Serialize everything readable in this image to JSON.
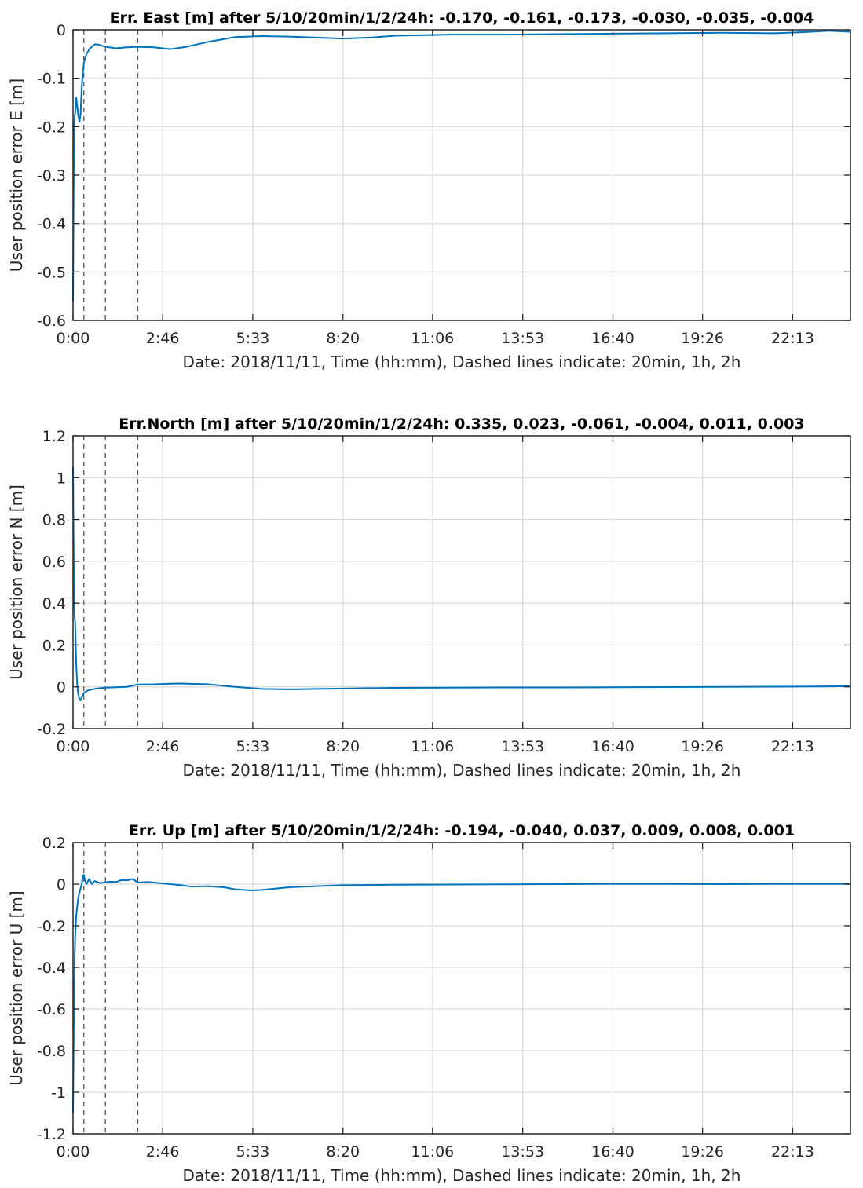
{
  "chart_data": [
    {
      "type": "line",
      "title": "Err. East [m] after 5/10/20min/1/2/24h: -0.170, -0.161, -0.173, -0.030, -0.035, -0.004",
      "xlabel": "Date: 2018/11/11, Time (hh:mm), Dashed lines indicate: 20min, 1h, 2h",
      "ylabel": "User position error E [m]",
      "xlim": [
        0,
        1440
      ],
      "ylim": [
        -0.6,
        0
      ],
      "x_ticks": [
        0,
        166,
        333,
        500,
        666,
        833,
        1000,
        1166,
        1333
      ],
      "x_tick_labels": [
        "0:00",
        "2:46",
        "5:33",
        "8:20",
        "11:06",
        "13:53",
        "16:40",
        "19:26",
        "22:13"
      ],
      "y_ticks": [
        0,
        -0.1,
        -0.2,
        -0.3,
        -0.4,
        -0.5,
        -0.6
      ],
      "y_tick_labels": [
        "0",
        "-0.1",
        "-0.2",
        "-0.3",
        "-0.4",
        "-0.5",
        "-0.6"
      ],
      "grid": true,
      "dashed_lines_x": [
        20,
        60,
        120
      ],
      "color": "#0072bd",
      "series": [
        {
          "x": [
            0,
            1,
            2,
            3,
            4,
            5,
            6,
            8,
            10,
            12,
            14,
            16,
            18,
            20,
            22,
            25,
            30,
            40,
            45,
            60,
            80,
            100,
            120,
            150,
            180,
            210,
            250,
            300,
            350,
            400,
            450,
            500,
            550,
            600,
            700,
            800,
            900,
            1000,
            1100,
            1200,
            1300,
            1350,
            1400,
            1440
          ],
          "y": [
            -0.56,
            -0.35,
            -0.2,
            -0.18,
            -0.17,
            -0.16,
            -0.14,
            -0.16,
            -0.18,
            -0.19,
            -0.173,
            -0.12,
            -0.09,
            -0.07,
            -0.06,
            -0.05,
            -0.04,
            -0.03,
            -0.03,
            -0.035,
            -0.038,
            -0.036,
            -0.035,
            -0.036,
            -0.04,
            -0.035,
            -0.025,
            -0.015,
            -0.013,
            -0.014,
            -0.016,
            -0.018,
            -0.016,
            -0.012,
            -0.01,
            -0.01,
            -0.009,
            -0.008,
            -0.007,
            -0.006,
            -0.007,
            -0.005,
            -0.002,
            -0.004
          ]
        }
      ]
    },
    {
      "type": "line",
      "title": "Err.North [m] after 5/10/20min/1/2/24h: 0.335,  0.023, -0.061, -0.004,  0.011,  0.003",
      "xlabel": "Date: 2018/11/11, Time (hh:mm), Dashed lines indicate: 20min, 1h, 2h",
      "ylabel": "User position error N [m]",
      "xlim": [
        0,
        1440
      ],
      "ylim": [
        -0.2,
        1.2
      ],
      "x_ticks": [
        0,
        166,
        333,
        500,
        666,
        833,
        1000,
        1166,
        1333
      ],
      "x_tick_labels": [
        "0:00",
        "2:46",
        "5:33",
        "8:20",
        "11:06",
        "13:53",
        "16:40",
        "19:26",
        "22:13"
      ],
      "y_ticks": [
        1.2,
        1,
        0.8,
        0.6,
        0.4,
        0.2,
        0,
        -0.2
      ],
      "y_tick_labels": [
        "1.2",
        "1",
        "0.8",
        "0.6",
        "0.4",
        "0.2",
        "0",
        "-0.2"
      ],
      "grid": true,
      "dashed_lines_x": [
        20,
        60,
        120
      ],
      "color": "#0072bd",
      "series": [
        {
          "x": [
            0,
            1,
            2,
            3,
            4,
            5,
            6,
            8,
            10,
            12,
            14,
            16,
            18,
            20,
            25,
            30,
            40,
            50,
            60,
            80,
            100,
            120,
            150,
            180,
            200,
            250,
            300,
            350,
            400,
            450,
            500,
            600,
            700,
            800,
            900,
            1000,
            1100,
            1200,
            1300,
            1400,
            1440
          ],
          "y": [
            1.05,
            0.7,
            0.4,
            0.335,
            0.3,
            0.2,
            0.1,
            0.0,
            -0.04,
            -0.06,
            -0.065,
            -0.05,
            -0.04,
            -0.03,
            -0.02,
            -0.015,
            -0.01,
            -0.006,
            -0.004,
            -0.002,
            0.0,
            0.011,
            0.012,
            0.015,
            0.016,
            0.012,
            0.0,
            -0.01,
            -0.012,
            -0.01,
            -0.008,
            -0.005,
            -0.004,
            -0.003,
            -0.003,
            -0.002,
            -0.001,
            0.0,
            0.001,
            0.002,
            0.003
          ]
        }
      ]
    },
    {
      "type": "line",
      "title": "Err. Up [m] after 5/10/20min/1/2/24h: -0.194, -0.040,  0.037,  0.009,  0.008,  0.001",
      "xlabel": "Date: 2018/11/11, Time (hh:mm), Dashed lines indicate: 20min, 1h, 2h",
      "ylabel": "User position error U [m]",
      "xlim": [
        0,
        1440
      ],
      "ylim": [
        -1.2,
        0.2
      ],
      "x_ticks": [
        0,
        166,
        333,
        500,
        666,
        833,
        1000,
        1166,
        1333
      ],
      "x_tick_labels": [
        "0:00",
        "2:46",
        "5:33",
        "8:20",
        "11:06",
        "13:53",
        "16:40",
        "19:26",
        "22:13"
      ],
      "y_ticks": [
        0.2,
        0,
        -0.2,
        -0.4,
        -0.6,
        -0.8,
        -1,
        -1.2
      ],
      "y_tick_labels": [
        "0.2",
        "0",
        "-0.2",
        "-0.4",
        "-0.6",
        "-0.8",
        "-1",
        "-1.2"
      ],
      "grid": true,
      "dashed_lines_x": [
        20,
        60,
        120
      ],
      "color": "#0072bd",
      "series": [
        {
          "x": [
            0,
            1,
            2,
            3,
            4,
            5,
            6,
            8,
            10,
            12,
            14,
            16,
            18,
            20,
            22,
            25,
            30,
            35,
            40,
            50,
            60,
            70,
            80,
            90,
            100,
            110,
            120,
            140,
            160,
            180,
            200,
            220,
            250,
            280,
            300,
            330,
            350,
            400,
            450,
            500,
            600,
            700,
            800,
            900,
            1000,
            1100,
            1200,
            1300,
            1400,
            1440
          ],
          "y": [
            -1.1,
            -0.8,
            -0.5,
            -0.35,
            -0.25,
            -0.194,
            -0.15,
            -0.1,
            -0.06,
            -0.04,
            -0.02,
            0.0,
            0.037,
            0.045,
            0.02,
            0.0,
            0.025,
            0.0,
            0.015,
            0.005,
            0.009,
            0.012,
            0.01,
            0.02,
            0.018,
            0.025,
            0.008,
            0.01,
            0.005,
            0.0,
            -0.005,
            -0.012,
            -0.01,
            -0.015,
            -0.025,
            -0.03,
            -0.028,
            -0.015,
            -0.01,
            -0.005,
            -0.003,
            -0.002,
            -0.001,
            0.0,
            0.001,
            0.001,
            0.0,
            0.001,
            0.001,
            0.001
          ]
        }
      ]
    }
  ]
}
